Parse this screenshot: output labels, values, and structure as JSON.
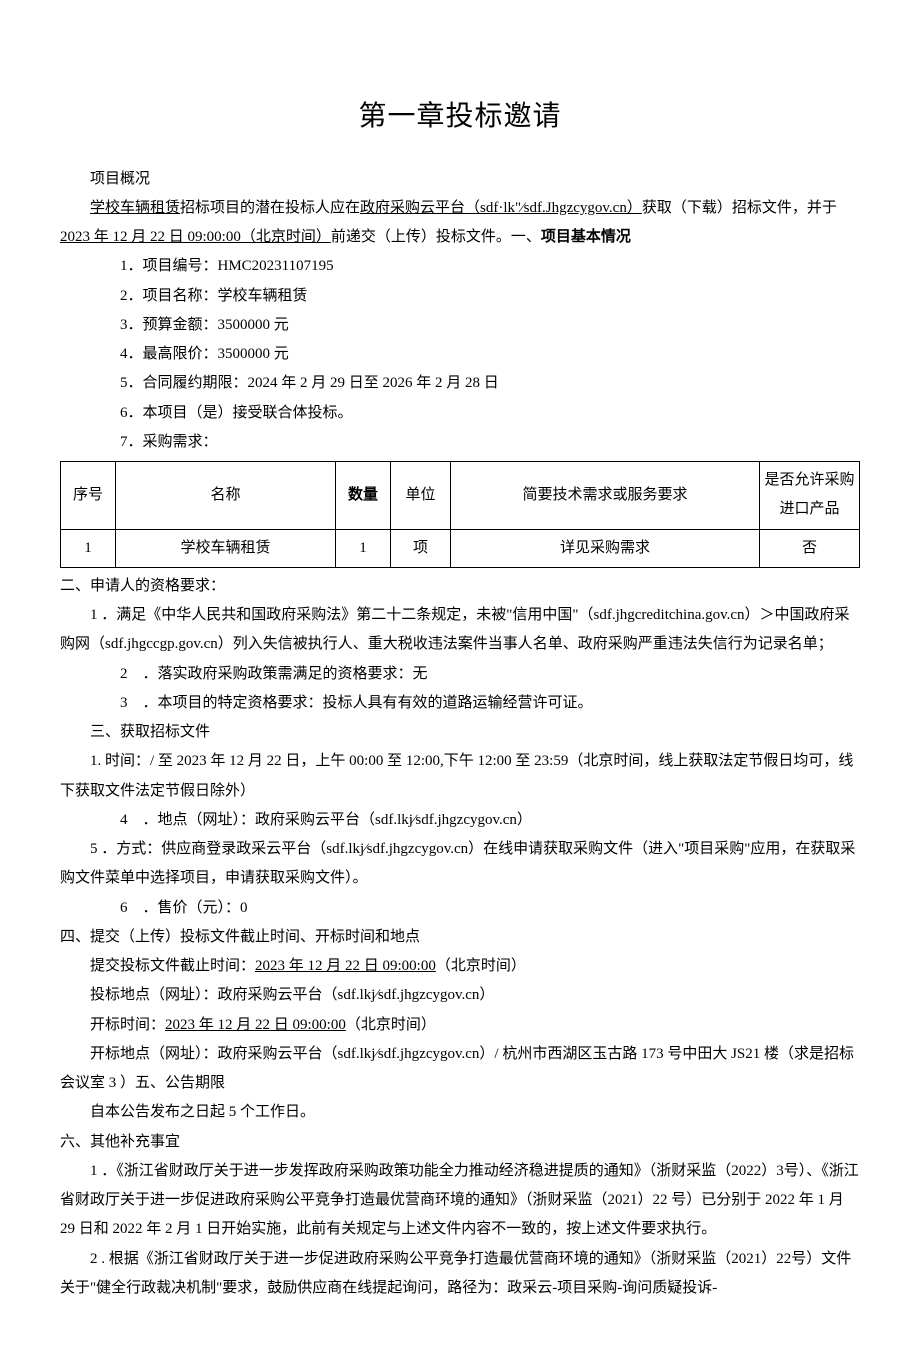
{
  "title": "第一章投标邀请",
  "overview_label": "项目概况",
  "intro_pre": "",
  "intro_proj_link": "学校车辆租赁",
  "intro_mid1": "招标项目的潜在投标人应在",
  "intro_platform_link": "政府采购云平台（sdf·lk\"⁄sdf.Jhgzcygov.cn）",
  "intro_mid2": "获取（下载）招标文件，并于",
  "intro_deadline_link": "2023 年 12 月 22 日 09:00:00（北京时间）",
  "intro_tail": "前递交（上传）投标文件。一、",
  "intro_section1_bold": "项目基本情况",
  "items1": {
    "1": "．项目编号：HMC20231107195",
    "2": "．项目名称：学校车辆租赁",
    "3": "．预算金额：3500000 元",
    "4": "．最高限价：3500000 元",
    "5": "．合同履约期限：2024 年 2 月 29 日至 2026 年 2 月 28 日",
    "6": "．本项目（是）接受联合体投标。",
    "7": "．采购需求："
  },
  "table": {
    "headers": {
      "seq": "序号",
      "name": "名称",
      "qty": "数量",
      "unit": "单位",
      "req": "简要技术需求或服务要求",
      "imp": "是否允许采购进口产品"
    },
    "row": {
      "seq": "1",
      "name": "学校车辆租赁",
      "qty": "1",
      "unit": "项",
      "req": "详见采购需求",
      "imp": "否"
    }
  },
  "section2_title": "二、申请人的资格要求：",
  "s2_item1": "1 ．满足《中华人民共和国政府采购法》第二十二条规定，未被\"信用中国\"（sdf.jhgcreditchina.gov.cn）＞中国政府采购网（sdf.jhgccgp.gov.cn）列入失信被执行人、重大税收违法案件当事人名单、政府采购严重违法失信行为记录名单；",
  "s2_item2": "．落实政府采购政策需满足的资格要求：无",
  "s2_item3": "．本项目的特定资格要求：投标人具有有效的道路运输经营许可证。",
  "section3_title": "三、获取招标文件",
  "s3_item1": "1. 时间：/ 至 2023 年 12 月 22 日，上午 00:00 至 12:00,下午 12:00 至 23:59（北京时间，线上获取法定节假日均可，线下获取文件法定节假日除外）",
  "s3_item4": "．地点（网址）：政府采购云平台（sdf.lkj⁄sdf.jhgzcygov.cn）",
  "s3_item5": "5 ．方式：供应商登录政采云平台（sdf.lkj⁄sdf.jhgzcygov.cn）在线申请获取采购文件（进入\"项目采购\"应用，在获取采购文件菜单中选择项目，申请获取采购文件）。",
  "s3_item6": "．售价（元）：0",
  "section4_title": "四、提交（上传）投标文件截止时间、开标时间和地点",
  "s4_deadline_pre": "提交投标文件截止时间：",
  "s4_deadline_link": "2023 年 12 月 22 日 09:00:00",
  "s4_deadline_post": "（北京时间）",
  "s4_place": "投标地点（网址）：政府采购云平台（sdf.lkj⁄sdf.jhgzcygov.cn）",
  "s4_open_pre": "开标时间：",
  "s4_open_link": "2023 年 12 月 22 日 09:00:00",
  "s4_open_post": "（北京时间）",
  "s4_open_place": "开标地点（网址）：政府采购云平台（sdf.lkj⁄sdf.jhgzcygov.cn）/ 杭州市西湖区玉古路 173 号中田大 JS21 楼（求是招标会议室 3 ）五、公告期限",
  "s5_body": "自本公告发布之日起 5 个工作日。",
  "section6_title": "六、其他补充事宜",
  "s6_item1": "1 ．《浙江省财政厅关于进一步发挥政府采购政策功能全力推动经济稳进提质的通知》（浙财采监（2022）3号）、《浙江省财政厅关于进一步促进政府采购公平竞争打造最优营商环境的通知》（浙财采监（2021）22 号）已分别于 2022 年 1 月 29 日和 2022 年 2 月 1 日开始实施，此前有关规定与上述文件内容不一致的，按上述文件要求执行。",
  "s6_item2": "2 . 根据《浙江省财政厅关于进一步促进政府采购公平竞争打造最优营商环境的通知》（浙财采监（2021）22号）文件关于\"健全行政裁决机制\"要求，鼓励供应商在线提起询问，路径为：政采云-项目采购-询问质疑投诉-"
}
